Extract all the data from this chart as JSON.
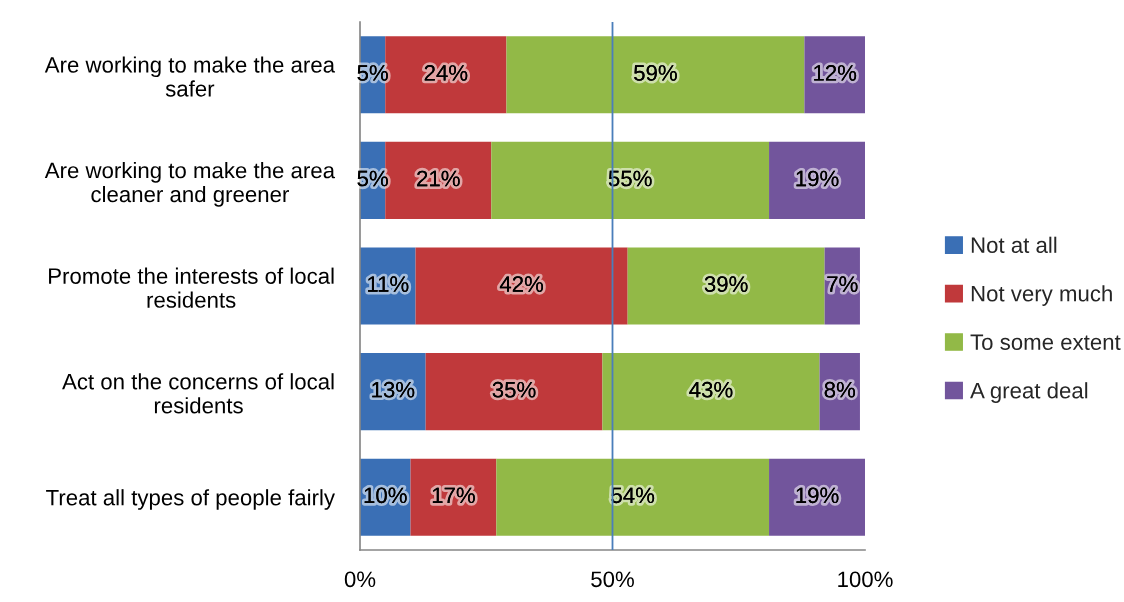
{
  "chart_data": {
    "type": "bar",
    "orientation": "horizontal",
    "stacked": true,
    "categories": [
      "Are working to make the area safer",
      "Are working to make the area cleaner and greener",
      "Promote the interests of local residents",
      "Act on the concerns of local residents",
      "Treat all types of people fairly"
    ],
    "series": [
      {
        "name": "Not at all",
        "color": "#3a6fb5",
        "values": [
          5,
          5,
          11,
          13,
          10
        ],
        "value_labels": [
          "5%",
          "5%",
          "11%",
          "13%",
          "10%"
        ]
      },
      {
        "name": "Not very much",
        "color": "#c0393b",
        "values": [
          24,
          21,
          42,
          35,
          17
        ],
        "value_labels": [
          "24%",
          "21%",
          "42%",
          "35%",
          "17%"
        ]
      },
      {
        "name": "To some extent",
        "color": "#92b947",
        "values": [
          59,
          55,
          39,
          43,
          54
        ],
        "value_labels": [
          "59%",
          "55%",
          "39%",
          "43%",
          "54%"
        ]
      },
      {
        "name": "A great deal",
        "color": "#72559c",
        "values": [
          12,
          19,
          7,
          8,
          19
        ],
        "value_labels": [
          "12%",
          "19%",
          "7%",
          "8%",
          "19%"
        ]
      }
    ],
    "xlim": [
      0,
      100
    ],
    "xticks": [
      {
        "value": 0,
        "label": "0%"
      },
      {
        "value": 50,
        "label": "50%"
      },
      {
        "value": 100,
        "label": "100%"
      }
    ],
    "ref_lines": [
      {
        "axis": "x",
        "value": 50,
        "color": "#4a7ebb"
      }
    ],
    "grid": false,
    "legend": "right"
  }
}
